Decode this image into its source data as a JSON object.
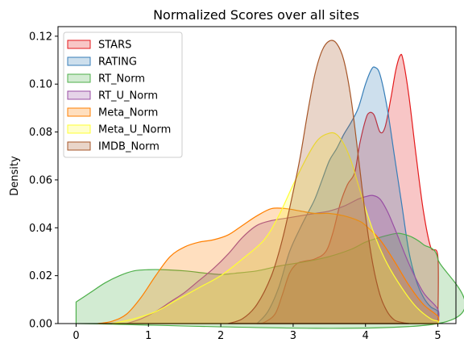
{
  "chart_data": {
    "type": "area",
    "title": "Normalized Scores over all sites",
    "xlabel": "",
    "ylabel": "Density",
    "xlim": [
      -0.25,
      5.25
    ],
    "ylim": [
      0,
      0.124
    ],
    "xticks": [
      0,
      1,
      2,
      3,
      4,
      5
    ],
    "yticks": [
      0.0,
      0.02,
      0.04,
      0.06,
      0.08,
      0.1,
      0.12
    ],
    "ytick_labels": [
      "0.00",
      "0.02",
      "0.04",
      "0.06",
      "0.08",
      "0.10",
      "0.12"
    ],
    "grid": false,
    "legend_position": "top-left",
    "series": [
      {
        "name": "STARS",
        "color": "#e41a1c",
        "points": [
          [
            2.5,
            0
          ],
          [
            2.6,
            0.0005
          ],
          [
            2.75,
            0.004
          ],
          [
            2.85,
            0.012
          ],
          [
            2.95,
            0.021
          ],
          [
            3.05,
            0.025
          ],
          [
            3.15,
            0.026
          ],
          [
            3.3,
            0.027
          ],
          [
            3.45,
            0.03
          ],
          [
            3.55,
            0.038
          ],
          [
            3.65,
            0.05
          ],
          [
            3.75,
            0.058
          ],
          [
            3.85,
            0.063
          ],
          [
            3.92,
            0.075
          ],
          [
            4.0,
            0.085
          ],
          [
            4.05,
            0.088
          ],
          [
            4.12,
            0.087
          ],
          [
            4.2,
            0.08
          ],
          [
            4.27,
            0.082
          ],
          [
            4.35,
            0.094
          ],
          [
            4.42,
            0.106
          ],
          [
            4.48,
            0.112
          ],
          [
            4.52,
            0.11
          ],
          [
            4.6,
            0.095
          ],
          [
            4.7,
            0.07
          ],
          [
            4.8,
            0.047
          ],
          [
            4.9,
            0.032
          ],
          [
            5.0,
            0.028
          ],
          [
            5.0,
            0
          ]
        ]
      },
      {
        "name": "RATING",
        "color": "#377eb8",
        "points": [
          [
            2.5,
            0
          ],
          [
            2.65,
            0.005
          ],
          [
            2.8,
            0.015
          ],
          [
            2.95,
            0.03
          ],
          [
            3.1,
            0.04
          ],
          [
            3.2,
            0.046
          ],
          [
            3.3,
            0.052
          ],
          [
            3.4,
            0.06
          ],
          [
            3.5,
            0.068
          ],
          [
            3.6,
            0.073
          ],
          [
            3.7,
            0.079
          ],
          [
            3.8,
            0.084
          ],
          [
            3.9,
            0.09
          ],
          [
            4.0,
            0.1
          ],
          [
            4.08,
            0.106
          ],
          [
            4.13,
            0.107
          ],
          [
            4.2,
            0.104
          ],
          [
            4.3,
            0.09
          ],
          [
            4.4,
            0.07
          ],
          [
            4.5,
            0.05
          ],
          [
            4.6,
            0.03
          ],
          [
            4.7,
            0.018
          ],
          [
            4.8,
            0.011
          ],
          [
            4.9,
            0.007
          ],
          [
            5.0,
            0.005
          ],
          [
            5.0,
            0
          ]
        ]
      },
      {
        "name": "RT_Norm",
        "color": "#4daf4a",
        "points": [
          [
            0,
            0.009
          ],
          [
            0.2,
            0.013
          ],
          [
            0.4,
            0.017
          ],
          [
            0.6,
            0.02
          ],
          [
            0.8,
            0.022
          ],
          [
            1.0,
            0.0225
          ],
          [
            1.2,
            0.0225
          ],
          [
            1.5,
            0.022
          ],
          [
            1.8,
            0.021
          ],
          [
            2.0,
            0.0205
          ],
          [
            2.2,
            0.021
          ],
          [
            2.5,
            0.022
          ],
          [
            2.8,
            0.024
          ],
          [
            3.0,
            0.025
          ],
          [
            3.2,
            0.026
          ],
          [
            3.5,
            0.028
          ],
          [
            3.8,
            0.031
          ],
          [
            4.0,
            0.034
          ],
          [
            4.2,
            0.036
          ],
          [
            4.4,
            0.0375
          ],
          [
            4.5,
            0.0375
          ],
          [
            4.65,
            0.036
          ],
          [
            4.8,
            0.033
          ],
          [
            5.0,
            0.027
          ],
          [
            5.0,
            0
          ],
          [
            0,
            0
          ]
        ]
      },
      {
        "name": "RT_U_Norm",
        "color": "#984ea3",
        "points": [
          [
            0.7,
            0
          ],
          [
            0.9,
            0.002
          ],
          [
            1.1,
            0.005
          ],
          [
            1.3,
            0.009
          ],
          [
            1.5,
            0.013
          ],
          [
            1.7,
            0.018
          ],
          [
            1.9,
            0.023
          ],
          [
            2.1,
            0.029
          ],
          [
            2.3,
            0.036
          ],
          [
            2.5,
            0.041
          ],
          [
            2.7,
            0.043
          ],
          [
            2.9,
            0.044
          ],
          [
            3.1,
            0.045
          ],
          [
            3.3,
            0.046
          ],
          [
            3.5,
            0.047
          ],
          [
            3.7,
            0.049
          ],
          [
            3.9,
            0.052
          ],
          [
            4.0,
            0.053
          ],
          [
            4.1,
            0.0535
          ],
          [
            4.2,
            0.052
          ],
          [
            4.3,
            0.047
          ],
          [
            4.4,
            0.04
          ],
          [
            4.6,
            0.025
          ],
          [
            4.8,
            0.013
          ],
          [
            5.0,
            0.006
          ],
          [
            5.0,
            0
          ]
        ]
      },
      {
        "name": "Meta_Norm",
        "color": "#ff7f00",
        "points": [
          [
            0.3,
            0
          ],
          [
            0.5,
            0.001
          ],
          [
            0.7,
            0.004
          ],
          [
            0.9,
            0.011
          ],
          [
            1.1,
            0.02
          ],
          [
            1.3,
            0.028
          ],
          [
            1.5,
            0.032
          ],
          [
            1.7,
            0.034
          ],
          [
            1.9,
            0.035
          ],
          [
            2.1,
            0.037
          ],
          [
            2.3,
            0.041
          ],
          [
            2.5,
            0.045
          ],
          [
            2.7,
            0.048
          ],
          [
            2.9,
            0.048
          ],
          [
            3.1,
            0.047
          ],
          [
            3.3,
            0.046
          ],
          [
            3.5,
            0.046
          ],
          [
            3.7,
            0.045
          ],
          [
            3.9,
            0.043
          ],
          [
            4.0,
            0.041
          ],
          [
            4.2,
            0.035
          ],
          [
            4.4,
            0.026
          ],
          [
            4.6,
            0.016
          ],
          [
            4.8,
            0.008
          ],
          [
            5.0,
            0.003
          ],
          [
            5.0,
            0
          ]
        ]
      },
      {
        "name": "Meta_U_Norm",
        "color": "#ffff33",
        "points": [
          [
            0.5,
            0
          ],
          [
            0.8,
            0.002
          ],
          [
            1.1,
            0.005
          ],
          [
            1.4,
            0.01
          ],
          [
            1.7,
            0.015
          ],
          [
            2.0,
            0.02
          ],
          [
            2.3,
            0.027
          ],
          [
            2.6,
            0.035
          ],
          [
            2.8,
            0.045
          ],
          [
            3.0,
            0.058
          ],
          [
            3.2,
            0.07
          ],
          [
            3.35,
            0.077
          ],
          [
            3.5,
            0.0795
          ],
          [
            3.6,
            0.079
          ],
          [
            3.7,
            0.075
          ],
          [
            3.8,
            0.068
          ],
          [
            3.9,
            0.058
          ],
          [
            4.0,
            0.048
          ],
          [
            4.15,
            0.035
          ],
          [
            4.3,
            0.025
          ],
          [
            4.5,
            0.015
          ],
          [
            4.7,
            0.007
          ],
          [
            4.9,
            0.002
          ],
          [
            5.0,
            0.001
          ],
          [
            5.0,
            0
          ]
        ]
      },
      {
        "name": "IMDB_Norm",
        "color": "#a65628",
        "points": [
          [
            2.1,
            0
          ],
          [
            2.3,
            0.002
          ],
          [
            2.5,
            0.008
          ],
          [
            2.7,
            0.02
          ],
          [
            2.85,
            0.035
          ],
          [
            3.0,
            0.055
          ],
          [
            3.1,
            0.07
          ],
          [
            3.2,
            0.088
          ],
          [
            3.3,
            0.104
          ],
          [
            3.4,
            0.114
          ],
          [
            3.5,
            0.118
          ],
          [
            3.6,
            0.117
          ],
          [
            3.7,
            0.11
          ],
          [
            3.8,
            0.094
          ],
          [
            3.9,
            0.07
          ],
          [
            4.0,
            0.045
          ],
          [
            4.1,
            0.025
          ],
          [
            4.2,
            0.012
          ],
          [
            4.3,
            0.005
          ],
          [
            4.4,
            0.0015
          ],
          [
            4.5,
            0.0005
          ],
          [
            4.6,
            0
          ]
        ]
      }
    ]
  }
}
